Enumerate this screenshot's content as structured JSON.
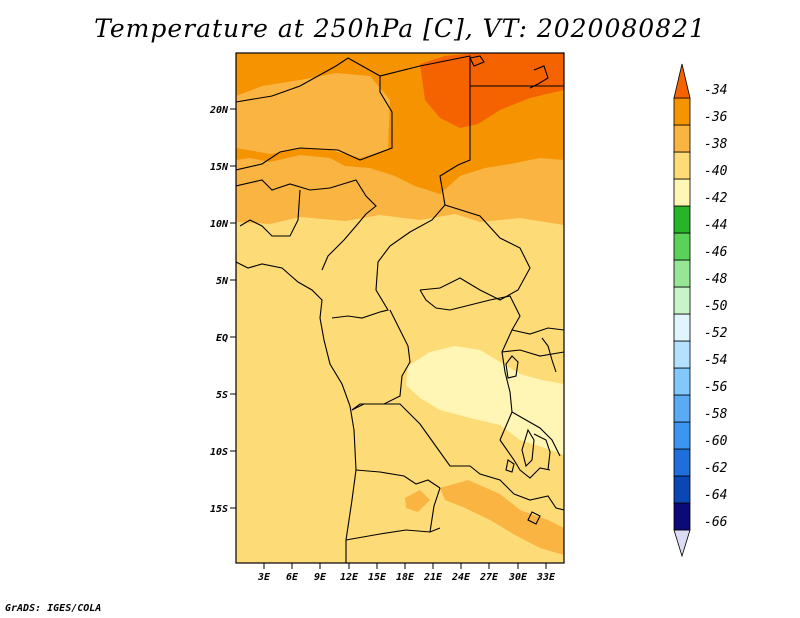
{
  "title": "Temperature at 250hPa [C], VT: 2020080821",
  "credit": "GrADS: IGES/COLA",
  "map": {
    "lon_labels": [
      "3E",
      "6E",
      "9E",
      "12E",
      "15E",
      "18E",
      "21E",
      "24E",
      "27E",
      "30E",
      "33E"
    ],
    "lat_labels": [
      "20N",
      "15N",
      "10N",
      "5N",
      "EQ",
      "5S",
      "10S",
      "15S"
    ],
    "fill_colors": {
      "c34_36": "#f56200",
      "c36_38": "#f59400",
      "c38_40": "#f9b442",
      "c40_42": "#fddc78",
      "c42_44": "#fff5b4"
    }
  },
  "colorbar": {
    "labels": [
      "-34",
      "-36",
      "-38",
      "-40",
      "-42",
      "-44",
      "-46",
      "-48",
      "-50",
      "-52",
      "-54",
      "-56",
      "-58",
      "-60",
      "-62",
      "-64",
      "-66"
    ],
    "colors": [
      "#dcdcf5",
      "#0a0a78",
      "#0a46b4",
      "#1e6edc",
      "#3c96f0",
      "#5aaaf5",
      "#82c8ff",
      "#b4e1ff",
      "#e1f5ff",
      "#c8f5c8",
      "#96e696",
      "#5ad25a",
      "#28b428",
      "#fff5b4",
      "#fddc78",
      "#f9b442",
      "#f59400",
      "#f56200"
    ]
  }
}
